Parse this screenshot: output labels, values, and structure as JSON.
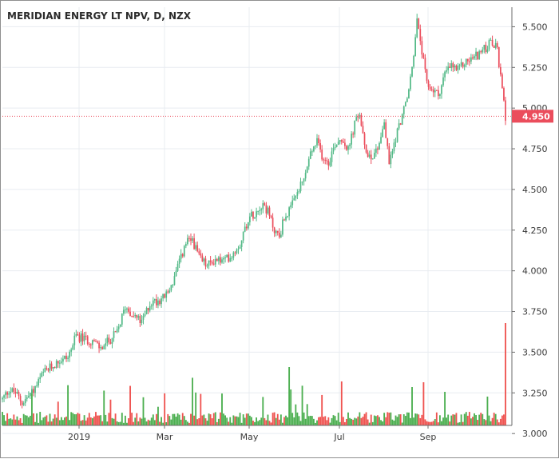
{
  "chart_data": {
    "type": "candlestick",
    "title": "MERIDIAN ENERGY LT NPV, D, NZX",
    "y_axis": {
      "ylim": [
        3.05,
        5.62
      ],
      "ticks": [
        "5.500",
        "5.250",
        "5.000",
        "4.750",
        "4.500",
        "4.250",
        "4.000",
        "3.750",
        "3.500",
        "3.250",
        "3.000"
      ]
    },
    "x_axis": {
      "ticks": [
        "2019",
        "Mar",
        "May",
        "Jul",
        "Sep"
      ]
    },
    "last_price": "4.950",
    "colors": {
      "up": "#53b987",
      "down": "#eb4d5c",
      "volume_up": "#4caf50",
      "volume_down": "#ef5350",
      "last_price": "#eb4d5c",
      "grid": "#e8ecf1"
    },
    "price_series": [
      [
        0,
        3.21
      ],
      [
        4,
        3.27
      ],
      [
        8,
        3.25
      ],
      [
        12,
        3.19
      ],
      [
        15,
        3.22
      ],
      [
        20,
        3.28
      ],
      [
        25,
        3.37
      ],
      [
        30,
        3.41
      ],
      [
        35,
        3.45
      ],
      [
        40,
        3.47
      ],
      [
        45,
        3.6
      ],
      [
        50,
        3.58
      ],
      [
        55,
        3.57
      ],
      [
        60,
        3.52
      ],
      [
        65,
        3.57
      ],
      [
        70,
        3.62
      ],
      [
        75,
        3.78
      ],
      [
        80,
        3.73
      ],
      [
        85,
        3.68
      ],
      [
        90,
        3.8
      ],
      [
        95,
        3.82
      ],
      [
        100,
        3.85
      ],
      [
        104,
        3.93
      ],
      [
        108,
        4.05
      ],
      [
        112,
        4.17
      ],
      [
        116,
        4.19
      ],
      [
        120,
        4.08
      ],
      [
        125,
        4.03
      ],
      [
        130,
        4.07
      ],
      [
        135,
        4.06
      ],
      [
        140,
        4.1
      ],
      [
        145,
        4.17
      ],
      [
        150,
        4.32
      ],
      [
        155,
        4.37
      ],
      [
        159,
        4.42
      ],
      [
        162,
        4.36
      ],
      [
        166,
        4.25
      ],
      [
        169,
        4.21
      ],
      [
        172,
        4.33
      ],
      [
        176,
        4.38
      ],
      [
        180,
        4.48
      ],
      [
        184,
        4.56
      ],
      [
        188,
        4.72
      ],
      [
        192,
        4.79
      ],
      [
        195,
        4.71
      ],
      [
        199,
        4.67
      ],
      [
        203,
        4.78
      ],
      [
        207,
        4.82
      ],
      [
        211,
        4.74
      ],
      [
        215,
        4.9
      ],
      [
        218,
        4.97
      ],
      [
        221,
        4.75
      ],
      [
        225,
        4.7
      ],
      [
        229,
        4.76
      ],
      [
        233,
        4.91
      ],
      [
        236,
        4.66
      ],
      [
        240,
        4.82
      ],
      [
        244,
        4.96
      ],
      [
        247,
        5.05
      ],
      [
        250,
        5.25
      ],
      [
        253,
        5.53
      ],
      [
        256,
        5.35
      ],
      [
        259,
        5.14
      ],
      [
        262,
        5.12
      ],
      [
        266,
        5.08
      ],
      [
        270,
        5.21
      ],
      [
        274,
        5.26
      ],
      [
        278,
        5.23
      ],
      [
        282,
        5.28
      ],
      [
        286,
        5.3
      ],
      [
        290,
        5.33
      ],
      [
        294,
        5.36
      ],
      [
        298,
        5.4
      ],
      [
        302,
        5.36
      ],
      [
        305,
        5.1
      ],
      [
        307,
        4.95
      ]
    ]
  }
}
